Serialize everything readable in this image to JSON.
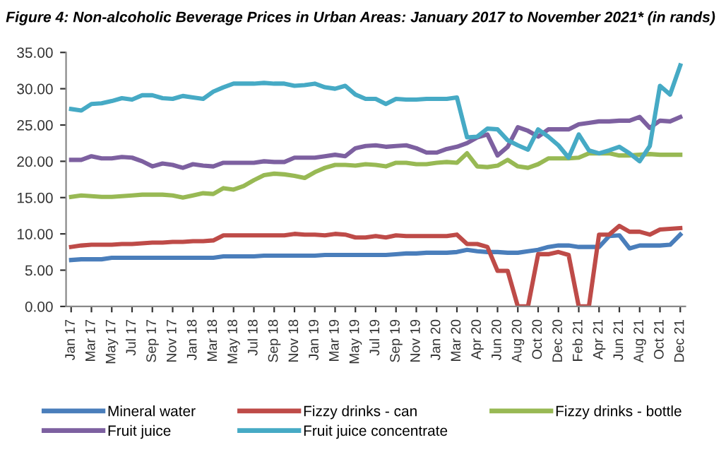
{
  "chart_data": {
    "type": "line",
    "title": "Figure 4: Non-alcoholic Beverage Prices in Urban Areas: January 2017 to November 2021* (in rands)",
    "categories": [
      "Jan 17",
      null,
      "Mar 17",
      null,
      "May 17",
      null,
      "Jul 17",
      null,
      "Sep 17",
      null,
      "Nov 17",
      null,
      "Jan 18",
      null,
      "Mar 18",
      null,
      "May 18",
      null,
      "Jul 18",
      null,
      "Sep 18",
      null,
      "Nov 18",
      null,
      "Jan 19",
      null,
      "Mar 19",
      null,
      "May 19",
      null,
      "Jul 19",
      null,
      "Sep 19",
      null,
      "Nov 19",
      null,
      "Jan 20",
      null,
      "Mar 20",
      null,
      "Apr 20",
      null,
      "Jun 20",
      null,
      "Aug 20",
      null,
      "Oct 20",
      null,
      "Dec 20",
      null,
      "Feb 21",
      null,
      "Apr 21",
      null,
      "Jun 21",
      null,
      "Aug 21",
      null,
      "Oct 21",
      null,
      "Dec 21"
    ],
    "series": [
      {
        "name": "Mineral water",
        "color": "#4a7ebb",
        "values": [
          6.4,
          6.5,
          6.5,
          6.5,
          6.7,
          6.7,
          6.7,
          6.7,
          6.7,
          6.7,
          6.7,
          6.7,
          6.7,
          6.7,
          6.7,
          6.9,
          6.9,
          6.9,
          6.9,
          7.0,
          7.0,
          7.0,
          7.0,
          7.0,
          7.0,
          7.1,
          7.1,
          7.1,
          7.1,
          7.1,
          7.1,
          7.1,
          7.2,
          7.3,
          7.3,
          7.4,
          7.4,
          7.4,
          7.5,
          7.8,
          7.6,
          7.5,
          7.5,
          7.4,
          7.4,
          7.6,
          7.8,
          8.2,
          8.4,
          8.4,
          8.2,
          8.2,
          8.2,
          9.7,
          9.8,
          8.0,
          8.4,
          8.4,
          8.4,
          8.5,
          9.9
        ]
      },
      {
        "name": "Fizzy drinks - can",
        "color": "#be4b48",
        "values": [
          8.2,
          8.4,
          8.5,
          8.5,
          8.5,
          8.6,
          8.6,
          8.7,
          8.8,
          8.8,
          8.9,
          8.9,
          9.0,
          9.0,
          9.1,
          9.8,
          9.8,
          9.8,
          9.8,
          9.8,
          9.8,
          9.8,
          10.0,
          9.9,
          9.9,
          9.8,
          10.0,
          9.9,
          9.5,
          9.5,
          9.7,
          9.5,
          9.8,
          9.7,
          9.7,
          9.7,
          9.7,
          9.7,
          9.9,
          8.6,
          8.6,
          8.2,
          4.9,
          4.9,
          0.0,
          0.0,
          7.2,
          7.2,
          7.5,
          7.1,
          0.0,
          0.0,
          9.9,
          9.9,
          11.1,
          10.3,
          10.3,
          9.9,
          10.6,
          10.7,
          10.8
        ]
      },
      {
        "name": "Fizzy drinks - bottle",
        "color": "#98b954",
        "values": [
          15.1,
          15.3,
          15.2,
          15.1,
          15.1,
          15.2,
          15.3,
          15.4,
          15.4,
          15.4,
          15.3,
          15.0,
          15.3,
          15.6,
          15.5,
          16.3,
          16.1,
          16.6,
          17.4,
          18.1,
          18.3,
          18.2,
          18.0,
          17.7,
          18.5,
          19.1,
          19.5,
          19.5,
          19.4,
          19.6,
          19.5,
          19.3,
          19.8,
          19.8,
          19.6,
          19.6,
          19.8,
          19.9,
          19.8,
          21.1,
          19.3,
          19.2,
          19.4,
          20.2,
          19.3,
          19.1,
          19.6,
          20.4,
          20.4,
          20.4,
          20.5,
          21.1,
          21.1,
          21.1,
          20.8,
          20.8,
          20.9,
          21.0,
          20.9,
          20.9,
          20.9
        ]
      },
      {
        "name": "Fruit juice",
        "color": "#7d60a0",
        "values": [
          20.2,
          20.2,
          20.7,
          20.4,
          20.4,
          20.6,
          20.5,
          20.0,
          19.3,
          19.7,
          19.5,
          19.1,
          19.6,
          19.4,
          19.3,
          19.8,
          19.8,
          19.8,
          19.8,
          20.0,
          19.9,
          19.9,
          20.5,
          20.5,
          20.5,
          20.7,
          20.9,
          20.7,
          21.8,
          22.1,
          22.2,
          22.0,
          22.1,
          22.2,
          21.8,
          21.2,
          21.2,
          21.7,
          22.0,
          22.5,
          23.3,
          23.7,
          20.8,
          22.0,
          24.7,
          24.2,
          23.4,
          24.4,
          24.4,
          24.4,
          25.1,
          25.3,
          25.5,
          25.5,
          25.6,
          25.6,
          26.1,
          24.6,
          25.6,
          25.5,
          26.1
        ]
      },
      {
        "name": "Fruit juice concentrate",
        "color": "#46aac5",
        "values": [
          27.2,
          27.0,
          27.9,
          28.0,
          28.3,
          28.7,
          28.5,
          29.1,
          29.1,
          28.7,
          28.6,
          29.0,
          28.8,
          28.6,
          29.6,
          30.2,
          30.7,
          30.7,
          30.7,
          30.8,
          30.7,
          30.7,
          30.4,
          30.5,
          30.7,
          30.2,
          30.0,
          30.4,
          29.2,
          28.6,
          28.6,
          27.9,
          28.6,
          28.5,
          28.5,
          28.6,
          28.6,
          28.6,
          28.8,
          23.3,
          23.4,
          24.5,
          24.4,
          22.9,
          22.2,
          21.6,
          24.4,
          23.4,
          22.2,
          20.5,
          23.7,
          21.5,
          21.1,
          21.5,
          22.0,
          21.1,
          20.0,
          22.1,
          30.4,
          29.2,
          33.2
        ]
      }
    ],
    "ylim": [
      0,
      35
    ],
    "yticks": [
      {
        "value": 0,
        "label": "0.00"
      },
      {
        "value": 5,
        "label": "5.00"
      },
      {
        "value": 10,
        "label": "10.00"
      },
      {
        "value": 15,
        "label": "15.00"
      },
      {
        "value": 20,
        "label": "20.00"
      },
      {
        "value": 25,
        "label": "25.00"
      },
      {
        "value": 30,
        "label": "30.00"
      },
      {
        "value": 35,
        "label": "35.00"
      }
    ],
    "legend": "bottom",
    "marker": "none",
    "line_style": "solid"
  }
}
